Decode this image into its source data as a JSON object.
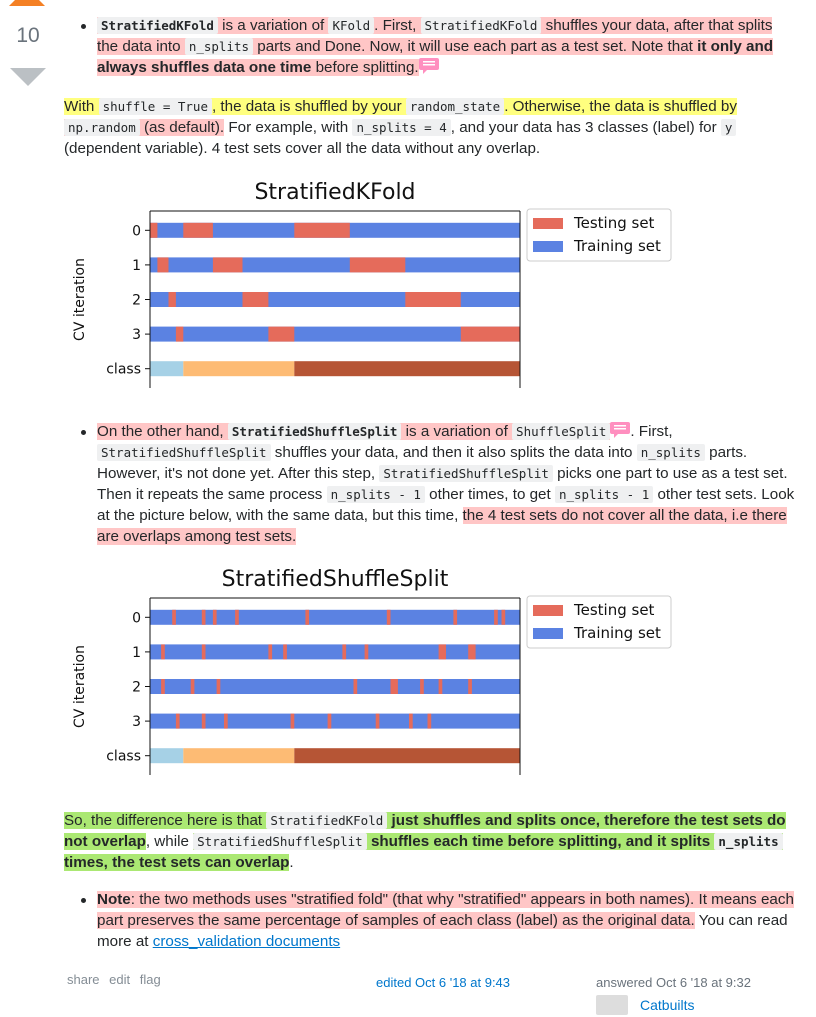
{
  "vote": {
    "count": "10"
  },
  "para1": {
    "code1": "StratifiedKFold",
    "t1": " is a variation of ",
    "code2": "KFold",
    "t2": ". First, ",
    "code3": "StratifiedKFold",
    "t3": " shuffles your data, after that splits the data into ",
    "code4": "n_splits",
    "t4": " parts and Done. Now, it will use each part as a test set. Note that ",
    "bold1": "it only and always shuffles data one time",
    "t5": " before splitting."
  },
  "para2": {
    "t1": "With ",
    "code1": "shuffle = True",
    "t2": ", the data is shuffled by your ",
    "code2": "random_state",
    "t3": ". Otherwise, the data is shuffled by ",
    "code3": "np.random",
    "t4": " (as default).",
    "t5": " For example, with ",
    "code4": "n_splits = 4",
    "t6": ", and your data has 3 classes (label) for ",
    "code5": "y",
    "t7": " (dependent variable). 4 test sets cover all the data without any overlap."
  },
  "para3": {
    "t1": "On the other hand, ",
    "code1": "StratifiedShuffleSplit",
    "t2": " is a variation of ",
    "code2": "ShuffleSplit",
    "t3": ". First, ",
    "code3": "StratifiedShuffleSplit",
    "t4": " shuffles your data, and then it also splits the data into ",
    "code4": "n_splits",
    "t5": " parts. However, it's not done yet. After this step, ",
    "code5": "StratifiedShuffleSplit",
    "t6": " picks one part to use as a test set. Then it repeats the same process ",
    "code6": "n_splits - 1",
    "t7": " other times, to get ",
    "code7": "n_splits - 1",
    "t8": " other test sets. Look at the picture below, with the same data, but this time, ",
    "t9": "the 4 test sets do not cover all the data, i.e there are overlaps among test sets."
  },
  "para4": {
    "t1": "So, the difference here is that ",
    "code1": "StratifiedKFold",
    "bold1": " just shuffles and splits once, therefore the test sets do not overlap",
    "t2": ", while ",
    "code2": "StratifiedShuffleSplit",
    "bold2": " shuffles each time before splitting, and it splits ",
    "code3": "n_splits",
    "bold3": " times, the test sets can overlap",
    "t3": "."
  },
  "para5": {
    "bold1": "Note",
    "t1": ": the two methods uses \"stratified fold\" (that why \"stratified\" appears in both names). It means each part preserves the same percentage of samples of each class (label) as the original data.",
    "t2": " You can read more at ",
    "link": "cross_validation documents"
  },
  "footer": {
    "share": "share",
    "edit": "edit",
    "flag": "flag",
    "edited": "edited Oct 6 '18 at 9:43",
    "answered": "answered Oct 6 '18 at 9:32",
    "user": "Catbuilts"
  },
  "colors": {
    "testing": "#e56b5b",
    "training": "#5b82e2",
    "class0": "#a6d1e6",
    "class1": "#fdbb74",
    "class2": "#b65535",
    "highlight_pink": "#ffc6c6",
    "highlight_yellow": "#ffff7f",
    "highlight_green": "#abe873"
  },
  "chart_data": [
    {
      "type": "bar",
      "title": "StratifiedKFold",
      "ylabel": "CV iteration",
      "xlabel": "",
      "categories": [
        "0",
        "1",
        "2",
        "3",
        "class"
      ],
      "legend": [
        "Testing set",
        "Training set"
      ],
      "legend_position": "top-right",
      "n_samples": 100,
      "test_segments": [
        [
          [
            0,
            2
          ],
          [
            9,
            17
          ],
          [
            39,
            54
          ]
        ],
        [
          [
            2,
            5
          ],
          [
            17,
            25
          ],
          [
            54,
            69
          ]
        ],
        [
          [
            5,
            7
          ],
          [
            25,
            32
          ],
          [
            69,
            84
          ]
        ],
        [
          [
            7,
            9
          ],
          [
            32,
            39
          ],
          [
            84,
            100
          ]
        ]
      ],
      "class_segments": [
        [
          0,
          9
        ],
        [
          9,
          39
        ],
        [
          39,
          100
        ]
      ]
    },
    {
      "type": "bar",
      "title": "StratifiedShuffleSplit",
      "ylabel": "CV iteration",
      "xlabel": "",
      "categories": [
        "0",
        "1",
        "2",
        "3",
        "class"
      ],
      "legend": [
        "Testing set",
        "Training set"
      ],
      "legend_position": "top-right",
      "n_samples": 100,
      "test_segments": [
        [
          [
            6,
            7
          ],
          [
            14,
            15
          ],
          [
            17,
            18
          ],
          [
            23,
            24
          ],
          [
            42,
            43
          ],
          [
            64,
            65
          ],
          [
            82,
            83
          ],
          [
            93,
            94
          ],
          [
            95,
            96
          ]
        ],
        [
          [
            3,
            4
          ],
          [
            14,
            15
          ],
          [
            32,
            33
          ],
          [
            36,
            37
          ],
          [
            52,
            53
          ],
          [
            58,
            59
          ],
          [
            78,
            80
          ],
          [
            86,
            88
          ]
        ],
        [
          [
            3,
            4
          ],
          [
            11,
            12
          ],
          [
            18,
            19
          ],
          [
            55,
            56
          ],
          [
            65,
            67
          ],
          [
            73,
            74
          ],
          [
            78,
            79
          ],
          [
            86,
            87
          ]
        ],
        [
          [
            7,
            8
          ],
          [
            14,
            15
          ],
          [
            20,
            21
          ],
          [
            38,
            39
          ],
          [
            48,
            49
          ],
          [
            61,
            62
          ],
          [
            70,
            71
          ],
          [
            75,
            76
          ]
        ]
      ],
      "class_segments": [
        [
          0,
          9
        ],
        [
          9,
          39
        ],
        [
          39,
          100
        ]
      ]
    }
  ]
}
